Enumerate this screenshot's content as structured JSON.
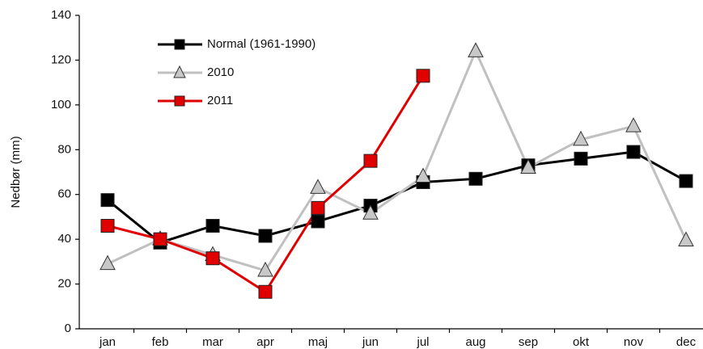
{
  "chart_data": {
    "type": "line",
    "y_label": "Nedbør (mm)",
    "categories": [
      "jan",
      "feb",
      "mar",
      "apr",
      "maj",
      "jun",
      "jul",
      "aug",
      "sep",
      "okt",
      "nov",
      "dec"
    ],
    "series": [
      {
        "name": "Normal (1961-1990)",
        "color": "#000000",
        "marker": "square",
        "marker_fill": "#000000",
        "values": [
          57.5,
          38.5,
          46,
          41.5,
          48,
          55,
          65.5,
          67,
          73,
          76,
          79,
          66
        ]
      },
      {
        "name": "2010",
        "color": "#c0c0c0",
        "marker": "triangle",
        "marker_fill": "#c8c8c8",
        "values": [
          29,
          40,
          33,
          26,
          63,
          51.5,
          68,
          124,
          72,
          84.5,
          90.5,
          39.5
        ]
      },
      {
        "name": "2011",
        "color": "#e00000",
        "marker": "square",
        "marker_fill": "#e00000",
        "values": [
          46,
          40,
          31.5,
          16.5,
          54,
          75,
          113,
          null,
          null,
          null,
          null,
          null
        ]
      }
    ],
    "ylim": [
      0,
      140
    ],
    "yticks": [
      0,
      20,
      40,
      60,
      80,
      100,
      120,
      140
    ]
  }
}
